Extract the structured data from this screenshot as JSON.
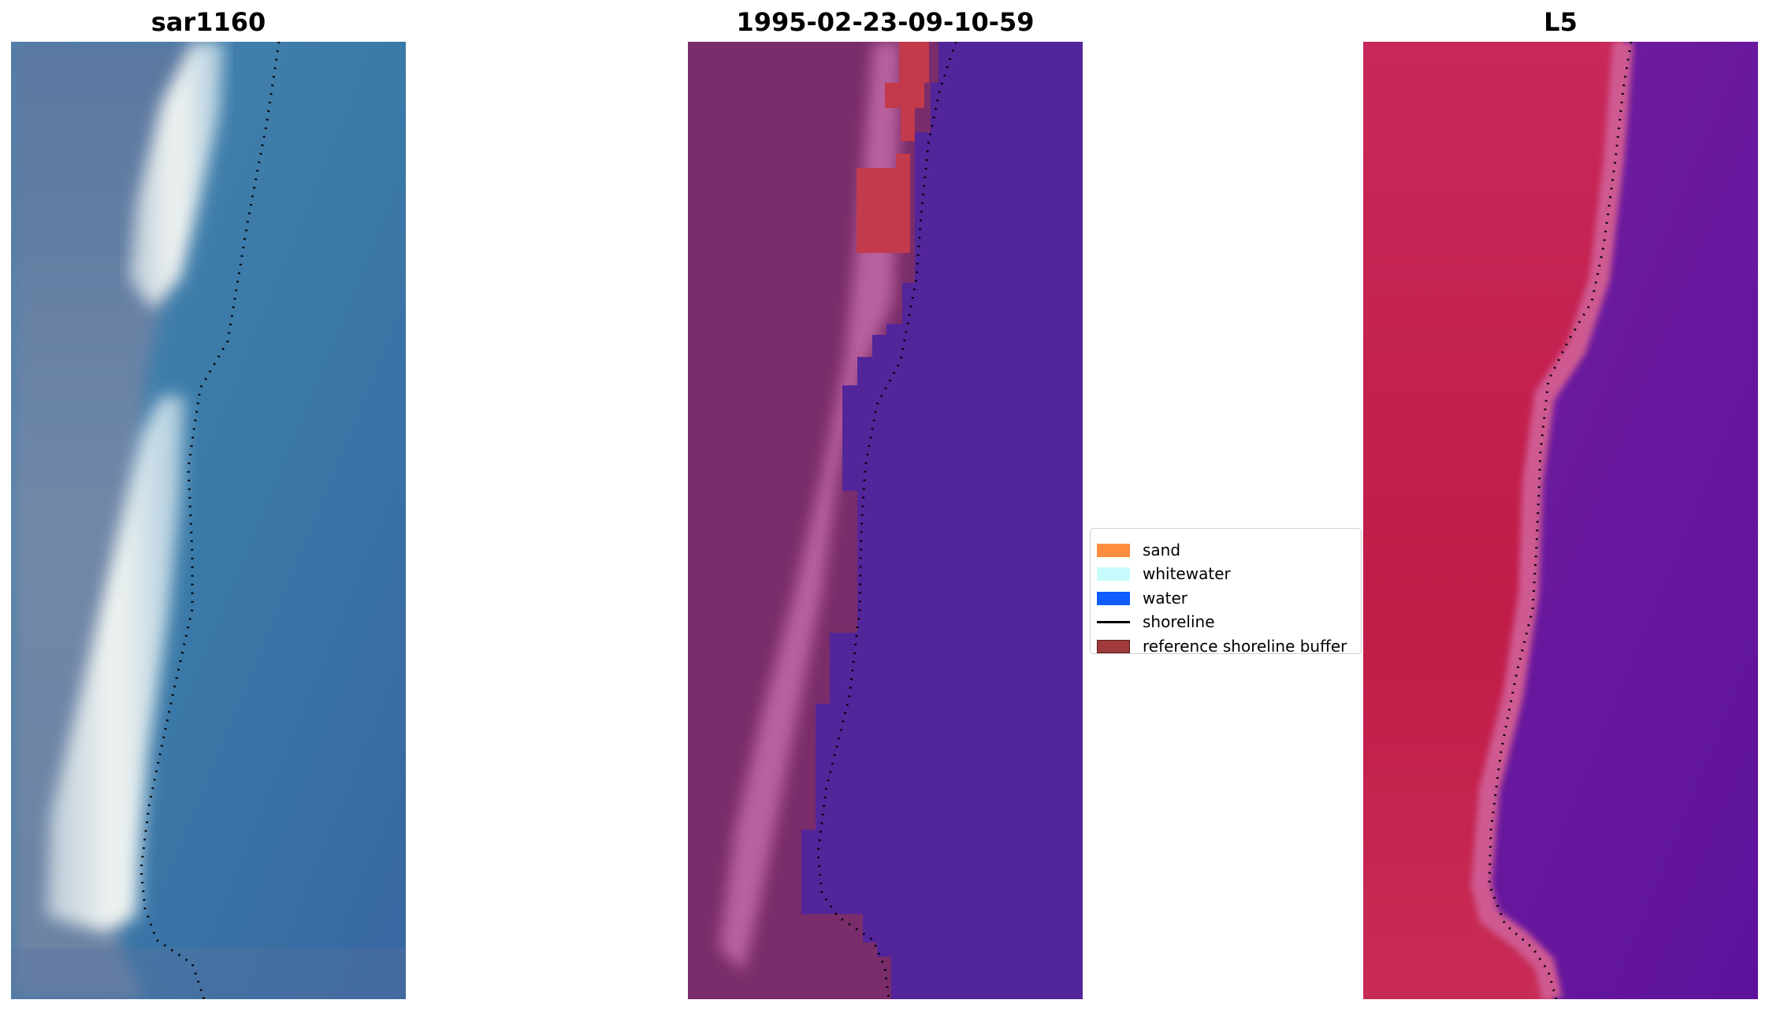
{
  "panels": [
    {
      "title": "sar1160"
    },
    {
      "title": "1995-02-23-09-10-59"
    },
    {
      "title": "L5"
    }
  ],
  "legend": {
    "items": [
      {
        "label": "sand",
        "color": "#ff8c3f",
        "kind": "patch"
      },
      {
        "label": "whitewater",
        "color": "#c8fbfb",
        "kind": "patch"
      },
      {
        "label": "water",
        "color": "#0f5cff",
        "kind": "patch"
      },
      {
        "label": "shoreline",
        "color": "#000000",
        "kind": "line"
      },
      {
        "label": "reference shoreline buffer",
        "color": "#a13a3a",
        "kind": "patch"
      }
    ]
  },
  "colors": {
    "rgb_water": "#3a78aa",
    "rgb_land": "#6a82a4",
    "rgb_whitewater": "#e9eef2",
    "class_land": "#7a2d6a",
    "class_sand_pink": "#c56aa8",
    "class_water": "#53259b",
    "class_buffer": "#c23a4b",
    "mndwi_land": "#c21c4b",
    "mndwi_water": "#6c1c9e",
    "mndwi_edge": "#cf5a92"
  }
}
